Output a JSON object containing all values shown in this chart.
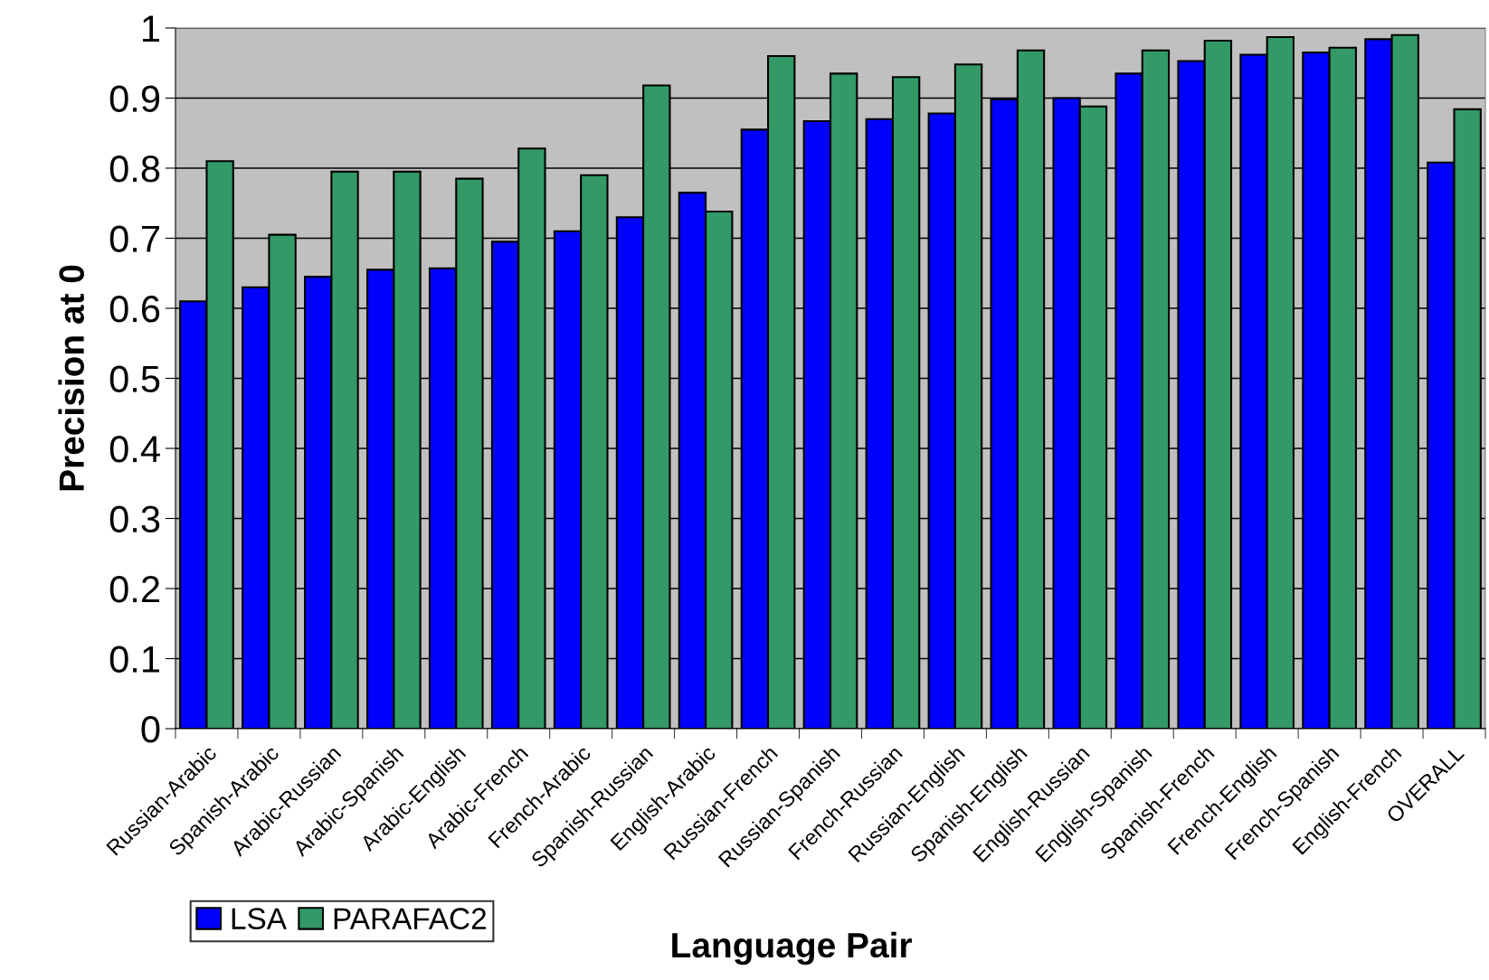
{
  "chart_data": {
    "type": "bar",
    "xlabel": "Language Pair",
    "ylabel": "Precision at 0",
    "categories": [
      "Russian-Arabic",
      "Spanish-Arabic",
      "Arabic-Russian",
      "Arabic-Spanish",
      "Arabic-English",
      "Arabic-French",
      "French-Arabic",
      "Spanish-Russian",
      "English-Arabic",
      "Russian-French",
      "Russian-Spanish",
      "French-Russian",
      "Russian-English",
      "Spanish-English",
      "English-Russian",
      "English-Spanish",
      "Spanish-French",
      "French-English",
      "French-Spanish",
      "English-French",
      "OVERALL"
    ],
    "series": [
      {
        "name": "LSA",
        "color": "#0000ff",
        "values": [
          0.61,
          0.63,
          0.645,
          0.655,
          0.657,
          0.695,
          0.71,
          0.73,
          0.765,
          0.855,
          0.867,
          0.87,
          0.878,
          0.898,
          0.9,
          0.935,
          0.953,
          0.962,
          0.965,
          0.984,
          0.808
        ]
      },
      {
        "name": "PARAFAC2",
        "color": "#339966",
        "values": [
          0.81,
          0.705,
          0.795,
          0.795,
          0.785,
          0.828,
          0.79,
          0.918,
          0.738,
          0.96,
          0.935,
          0.93,
          0.948,
          0.968,
          0.888,
          0.968,
          0.982,
          0.987,
          0.972,
          0.99,
          0.884
        ]
      }
    ],
    "ylim": [
      0,
      1
    ],
    "yticks": [
      0,
      0.1,
      0.2,
      0.3,
      0.4,
      0.5,
      0.6,
      0.7,
      0.8,
      0.9,
      1
    ],
    "grid": "y",
    "legend": "bottom left"
  }
}
